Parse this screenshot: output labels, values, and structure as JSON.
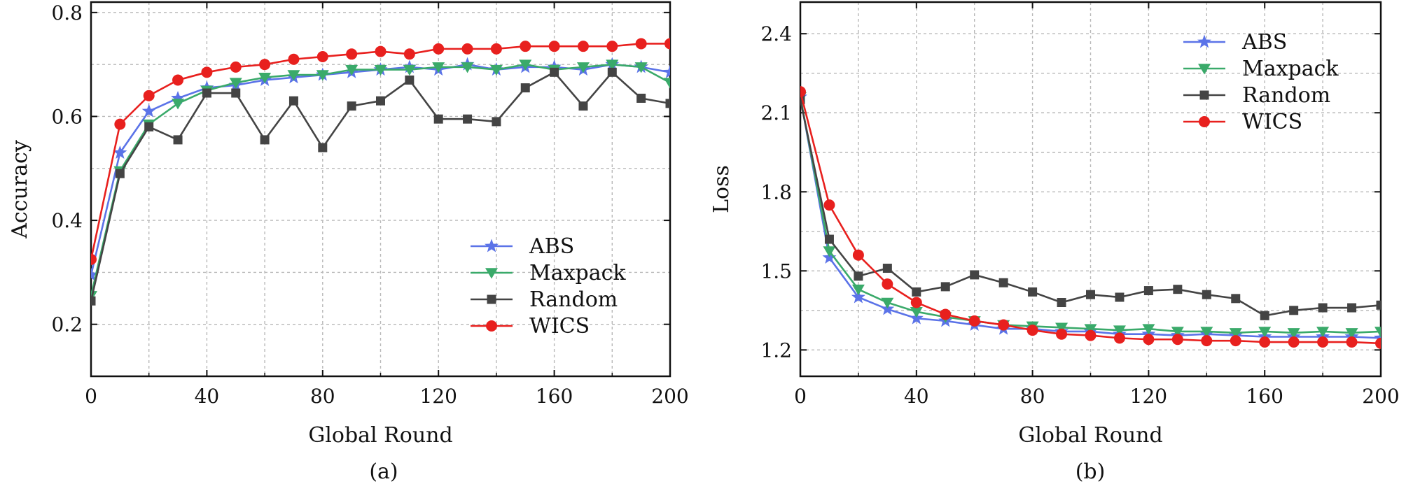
{
  "chart_data": [
    {
      "type": "line",
      "caption": "(a)",
      "xlabel": "Global Round",
      "ylabel": "Accuracy",
      "xlim": [
        0,
        200
      ],
      "ylim": [
        0.1,
        0.82
      ],
      "xticks": [
        0,
        40,
        80,
        120,
        160,
        200
      ],
      "yticks": [
        0.2,
        0.4,
        0.6,
        0.8
      ],
      "ytick_labels": [
        "0.2",
        "0.4",
        "0.6",
        "0.8"
      ],
      "grid": true,
      "legend_position": "bottom-right",
      "series": [
        {
          "name": "ABS",
          "color": "#5b73e8",
          "marker": "star",
          "x": [
            0,
            10,
            20,
            30,
            40,
            50,
            60,
            70,
            80,
            90,
            100,
            110,
            120,
            130,
            140,
            150,
            160,
            170,
            180,
            190,
            200
          ],
          "y": [
            0.295,
            0.53,
            0.61,
            0.635,
            0.655,
            0.66,
            0.67,
            0.675,
            0.68,
            0.685,
            0.69,
            0.695,
            0.69,
            0.7,
            0.69,
            0.695,
            0.695,
            0.69,
            0.7,
            0.695,
            0.685
          ]
        },
        {
          "name": "Maxpack",
          "color": "#3aaa6a",
          "marker": "triangle-down",
          "x": [
            0,
            10,
            20,
            30,
            40,
            50,
            60,
            70,
            80,
            90,
            100,
            110,
            120,
            130,
            140,
            150,
            160,
            170,
            180,
            190,
            200
          ],
          "y": [
            0.255,
            0.495,
            0.585,
            0.625,
            0.65,
            0.665,
            0.675,
            0.68,
            0.68,
            0.69,
            0.69,
            0.69,
            0.695,
            0.695,
            0.69,
            0.7,
            0.69,
            0.695,
            0.7,
            0.695,
            0.665
          ]
        },
        {
          "name": "Random",
          "color": "#444444",
          "marker": "square",
          "x": [
            0,
            10,
            20,
            30,
            40,
            50,
            60,
            70,
            80,
            90,
            100,
            110,
            120,
            130,
            140,
            150,
            160,
            170,
            180,
            190,
            200
          ],
          "y": [
            0.245,
            0.49,
            0.58,
            0.555,
            0.645,
            0.645,
            0.555,
            0.63,
            0.54,
            0.62,
            0.63,
            0.67,
            0.595,
            0.595,
            0.59,
            0.655,
            0.685,
            0.62,
            0.685,
            0.635,
            0.625
          ]
        },
        {
          "name": "WICS",
          "color": "#e8201e",
          "marker": "circle",
          "x": [
            0,
            10,
            20,
            30,
            40,
            50,
            60,
            70,
            80,
            90,
            100,
            110,
            120,
            130,
            140,
            150,
            160,
            170,
            180,
            190,
            200
          ],
          "y": [
            0.325,
            0.585,
            0.64,
            0.67,
            0.685,
            0.695,
            0.7,
            0.71,
            0.715,
            0.72,
            0.725,
            0.72,
            0.73,
            0.73,
            0.73,
            0.735,
            0.735,
            0.735,
            0.735,
            0.74,
            0.74
          ]
        }
      ]
    },
    {
      "type": "line",
      "caption": "(b)",
      "xlabel": "Global Round",
      "ylabel": "Loss",
      "xlim": [
        0,
        200
      ],
      "ylim": [
        1.1,
        2.52
      ],
      "xticks": [
        0,
        40,
        80,
        120,
        160,
        200
      ],
      "yticks": [
        1.2,
        1.5,
        1.8,
        2.1,
        2.4
      ],
      "ytick_labels": [
        "1.2",
        "1.5",
        "1.8",
        "2.1",
        "2.4"
      ],
      "grid": true,
      "legend_position": "top-right",
      "series": [
        {
          "name": "ABS",
          "color": "#5b73e8",
          "marker": "star",
          "x": [
            0,
            10,
            20,
            30,
            40,
            50,
            60,
            70,
            80,
            90,
            100,
            110,
            120,
            130,
            140,
            150,
            160,
            170,
            180,
            190,
            200
          ],
          "y": [
            2.16,
            1.55,
            1.4,
            1.355,
            1.32,
            1.31,
            1.295,
            1.28,
            1.28,
            1.27,
            1.27,
            1.26,
            1.26,
            1.255,
            1.26,
            1.255,
            1.25,
            1.25,
            1.25,
            1.25,
            1.245
          ]
        },
        {
          "name": "Maxpack",
          "color": "#3aaa6a",
          "marker": "triangle-down",
          "x": [
            0,
            10,
            20,
            30,
            40,
            50,
            60,
            70,
            80,
            90,
            100,
            110,
            120,
            130,
            140,
            150,
            160,
            170,
            180,
            190,
            200
          ],
          "y": [
            2.16,
            1.575,
            1.43,
            1.38,
            1.345,
            1.325,
            1.31,
            1.295,
            1.29,
            1.285,
            1.28,
            1.275,
            1.28,
            1.27,
            1.27,
            1.265,
            1.27,
            1.265,
            1.27,
            1.265,
            1.27
          ]
        },
        {
          "name": "Random",
          "color": "#444444",
          "marker": "square",
          "x": [
            0,
            10,
            20,
            30,
            40,
            50,
            60,
            70,
            80,
            90,
            100,
            110,
            120,
            130,
            140,
            150,
            160,
            170,
            180,
            190,
            200
          ],
          "y": [
            2.15,
            1.62,
            1.48,
            1.51,
            1.42,
            1.44,
            1.485,
            1.455,
            1.42,
            1.38,
            1.41,
            1.4,
            1.425,
            1.43,
            1.41,
            1.395,
            1.33,
            1.35,
            1.36,
            1.36,
            1.37
          ]
        },
        {
          "name": "WICS",
          "color": "#e8201e",
          "marker": "circle",
          "x": [
            0,
            10,
            20,
            30,
            40,
            50,
            60,
            70,
            80,
            90,
            100,
            110,
            120,
            130,
            140,
            150,
            160,
            170,
            180,
            190,
            200
          ],
          "y": [
            2.18,
            1.75,
            1.56,
            1.45,
            1.38,
            1.335,
            1.31,
            1.295,
            1.275,
            1.26,
            1.255,
            1.245,
            1.24,
            1.24,
            1.235,
            1.235,
            1.23,
            1.23,
            1.23,
            1.23,
            1.225
          ]
        }
      ]
    }
  ]
}
